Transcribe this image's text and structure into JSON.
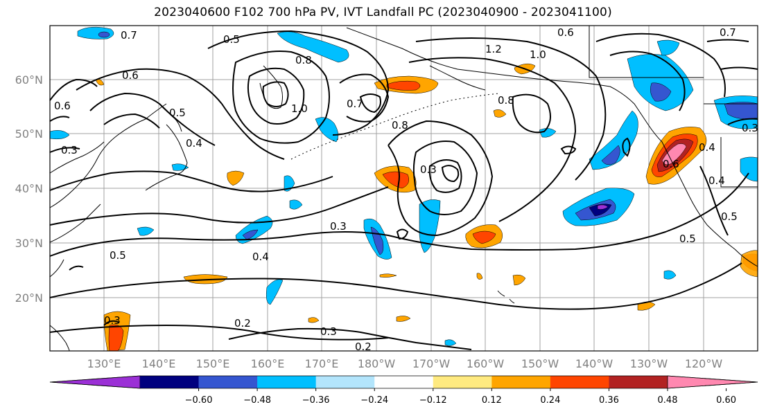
{
  "title": "2023040600 F102 700 hPa PV, IVT Landfall PC (2023040900 - 2023041100)",
  "map": {
    "lat_labels": [
      "60°N",
      "50°N",
      "40°N",
      "30°N",
      "20°N"
    ],
    "lon_labels": [
      "130°E",
      "140°E",
      "150°E",
      "160°E",
      "170°E",
      "180°W",
      "170°W",
      "160°W",
      "150°W",
      "140°W",
      "130°W",
      "120°W"
    ],
    "contour_labels": [
      "0.7",
      "0.5",
      "0.8",
      "1.2",
      "1.0",
      "0.6",
      "0.6",
      "0.5",
      "0.4",
      "0.6",
      "0.3",
      "1.0",
      "0.7",
      "0.8",
      "0.8",
      "0.4",
      "0.6",
      "0.3",
      "0.3",
      "0.4",
      "0.5",
      "0.5",
      "0.3",
      "0.2",
      "0.3",
      "0.2",
      "0.4",
      "0.5",
      "0.3",
      "0.7"
    ],
    "colors": {
      "land_outline": "#000000",
      "grid": "#a0a0a0",
      "contour": "#000000"
    }
  },
  "colorbar": {
    "ticks": [
      "−0.60",
      "−0.48",
      "−0.36",
      "−0.24",
      "−0.12",
      "0.12",
      "0.24",
      "0.36",
      "0.48",
      "0.60"
    ],
    "colors": [
      "#9b30d6",
      "#00007f",
      "#3556d0",
      "#00bfff",
      "#b3e5fc",
      "#ffffff",
      "#ffea80",
      "#ffa500",
      "#ff4500",
      "#b22222",
      "#ff88b0"
    ]
  }
}
